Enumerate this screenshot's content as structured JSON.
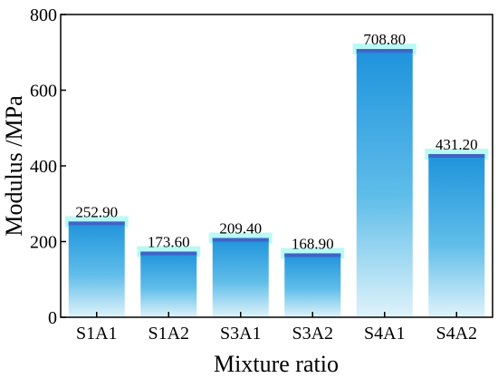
{
  "chart_data": {
    "type": "bar",
    "categories": [
      "S1A1",
      "S1A2",
      "S3A1",
      "S3A2",
      "S4A1",
      "S4A2"
    ],
    "values": [
      252.9,
      173.6,
      209.4,
      168.9,
      708.8,
      431.2
    ],
    "data_labels": [
      "252.90",
      "173.60",
      "209.40",
      "168.90",
      "708.80",
      "431.20"
    ],
    "title": "",
    "xlabel": "Mixture ratio",
    "ylabel": "Modulus /MPa",
    "ylim": [
      0,
      800
    ],
    "yticks": [
      0,
      200,
      400,
      600,
      800
    ],
    "ytick_labels": [
      "0",
      "200",
      "400",
      "600",
      "800"
    ],
    "grid": false,
    "legend": "none",
    "colors": {
      "bar_top": "#1E93DC",
      "bar_bottom": "#DFF3FA",
      "bar_cap": "#3F64C8",
      "bar_glow": "#7FF5EC",
      "axis": "#000000"
    }
  }
}
